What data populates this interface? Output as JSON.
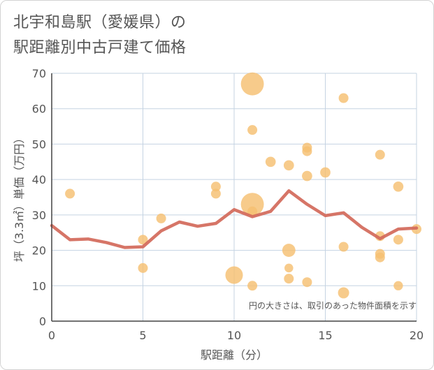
{
  "page": {
    "title_line1": "北宇和島駅（愛媛県）の",
    "title_line2": "駅距離別中古戸建て価格"
  },
  "chart_data": {
    "type": "scatter",
    "title": "北宇和島駅（愛媛県）の駅距離別中古戸建て価格",
    "xlabel": "駅距離（分）",
    "ylabel": "坪（3.3㎡）単価（万円）",
    "xlim": [
      0,
      20
    ],
    "ylim": [
      0,
      70
    ],
    "x_ticks": [
      0,
      5,
      10,
      15,
      20
    ],
    "y_ticks": [
      0,
      10,
      20,
      30,
      40,
      50,
      60,
      70
    ],
    "grid": true,
    "note": "円の大きさは、取引のあった物件面積を示す",
    "colors": {
      "bubble": "#f5c071",
      "line": "#d2695a",
      "grid": "#c5d3e2",
      "text": "#555555"
    },
    "bubbles": [
      {
        "x": 1,
        "y": 36,
        "size": 1
      },
      {
        "x": 5,
        "y": 23,
        "size": 1
      },
      {
        "x": 5,
        "y": 15,
        "size": 1
      },
      {
        "x": 6,
        "y": 29,
        "size": 1
      },
      {
        "x": 9,
        "y": 38,
        "size": 1
      },
      {
        "x": 9,
        "y": 36,
        "size": 1
      },
      {
        "x": 10,
        "y": 13,
        "size": 3.2
      },
      {
        "x": 11,
        "y": 67,
        "size": 5.5
      },
      {
        "x": 11,
        "y": 54,
        "size": 1
      },
      {
        "x": 11,
        "y": 33,
        "size": 5.5
      },
      {
        "x": 11,
        "y": 31,
        "size": 1
      },
      {
        "x": 11,
        "y": 10,
        "size": 1
      },
      {
        "x": 12,
        "y": 45,
        "size": 1.1
      },
      {
        "x": 13,
        "y": 44,
        "size": 1.1
      },
      {
        "x": 13,
        "y": 20,
        "size": 1.8
      },
      {
        "x": 13,
        "y": 15,
        "size": 0.8
      },
      {
        "x": 13,
        "y": 12,
        "size": 1
      },
      {
        "x": 14,
        "y": 49,
        "size": 1
      },
      {
        "x": 14,
        "y": 48,
        "size": 1
      },
      {
        "x": 14,
        "y": 41,
        "size": 1.1
      },
      {
        "x": 14,
        "y": 11,
        "size": 1
      },
      {
        "x": 15,
        "y": 42,
        "size": 1.1
      },
      {
        "x": 16,
        "y": 63,
        "size": 1
      },
      {
        "x": 16,
        "y": 21,
        "size": 1
      },
      {
        "x": 16,
        "y": 8,
        "size": 1.3
      },
      {
        "x": 18,
        "y": 47,
        "size": 1
      },
      {
        "x": 18,
        "y": 24,
        "size": 1
      },
      {
        "x": 18,
        "y": 19,
        "size": 1
      },
      {
        "x": 18,
        "y": 18,
        "size": 1
      },
      {
        "x": 19,
        "y": 38,
        "size": 1.1
      },
      {
        "x": 19,
        "y": 23,
        "size": 1
      },
      {
        "x": 19,
        "y": 10,
        "size": 0.9
      },
      {
        "x": 20,
        "y": 26,
        "size": 1
      }
    ],
    "trend": {
      "x": [
        0,
        1,
        2,
        3,
        4,
        5,
        6,
        7,
        8,
        9,
        10,
        11,
        12,
        13,
        14,
        15,
        16,
        17,
        18,
        19,
        20
      ],
      "y": [
        27,
        23,
        23.2,
        22.2,
        20.8,
        21,
        25.5,
        28,
        26.8,
        27.6,
        31.5,
        29.5,
        31,
        36.8,
        33,
        29.8,
        30.6,
        26.5,
        23.3,
        26,
        26.3
      ]
    }
  }
}
